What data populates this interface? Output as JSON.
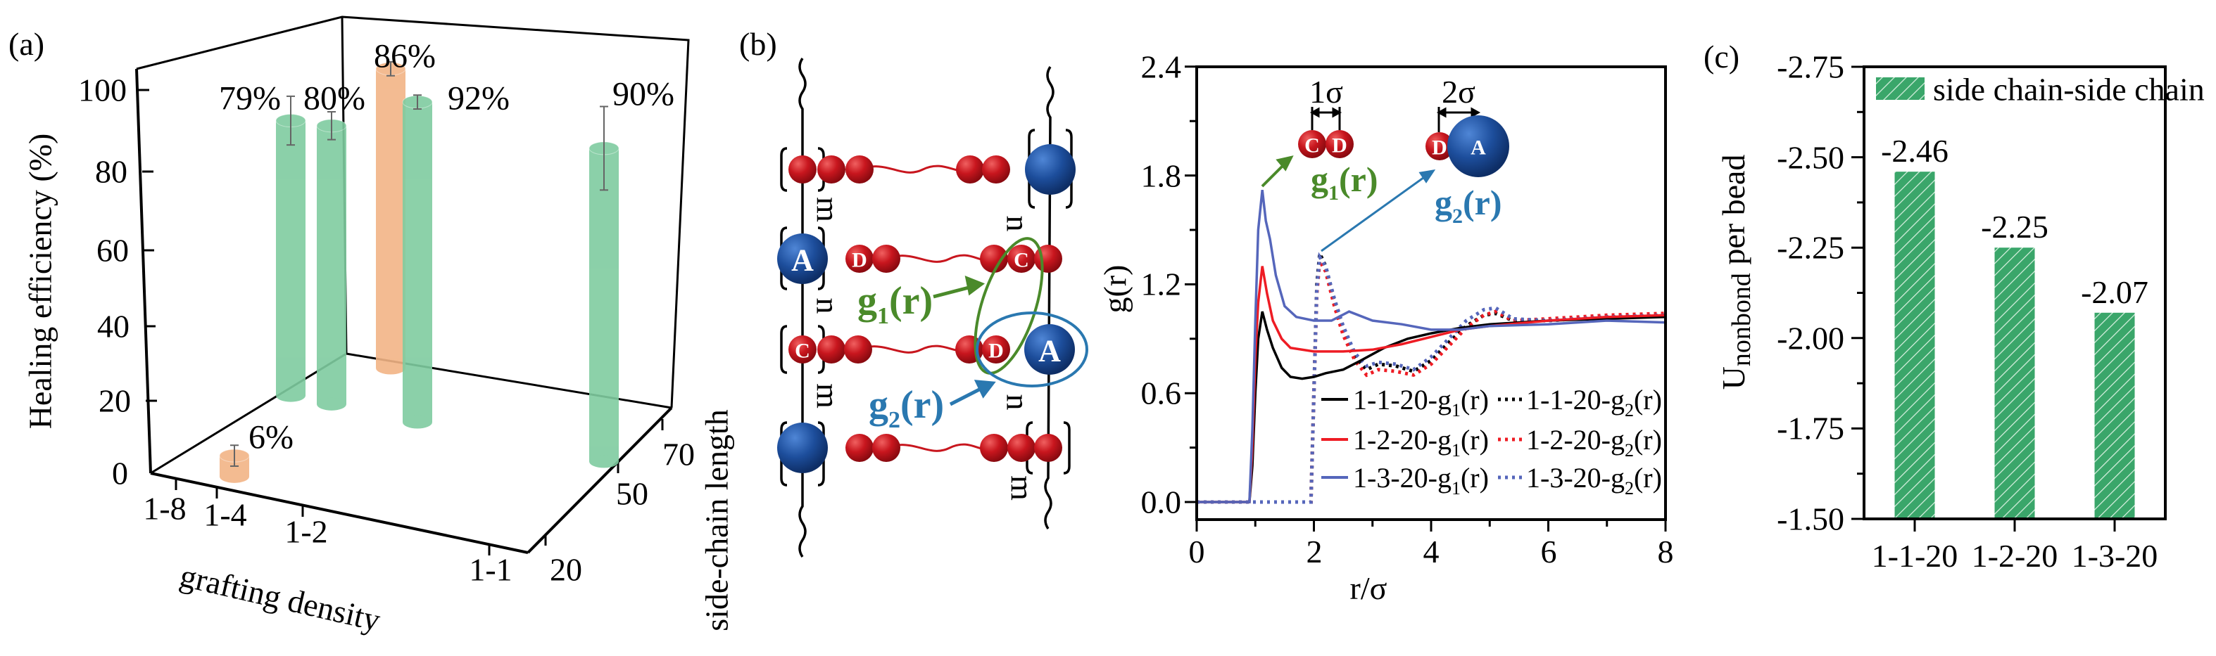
{
  "panel_labels": {
    "a": "(a)",
    "b": "(b)",
    "c": "(c)"
  },
  "colors": {
    "green_bar": "#7fcca0",
    "orange_bar": "#f2b486",
    "bead_red": "#c8161e",
    "bead_blue": "#1d4e9c",
    "g1_green": "#4a8a2a",
    "g2_blue": "#2a78b0",
    "hatch_green": "#3aa66a"
  },
  "chart_data": [
    {
      "type": "bar3d",
      "zlabel": "Healing efficiency (%)",
      "xlabel": "grafting density",
      "ylabel": "side-chain length",
      "z_ticks": [
        "0",
        "20",
        "40",
        "60",
        "80",
        "100"
      ],
      "x_ticks": [
        "1-8",
        "1-4",
        "1-2",
        "1-1"
      ],
      "y_ticks": [
        "20",
        "50",
        "70"
      ],
      "zlim": [
        0,
        100
      ],
      "bars": [
        {
          "grafting": "1-4",
          "side_chain": 20,
          "value": 6,
          "error": 3,
          "label": "6%",
          "color": "orange"
        },
        {
          "grafting": "1-8",
          "side_chain": 50,
          "value": 79,
          "error": 7,
          "label": "79%",
          "color": "green"
        },
        {
          "grafting": "1-4",
          "side_chain": 50,
          "value": 80,
          "error": 4,
          "label": "80%",
          "color": "green"
        },
        {
          "grafting": "1-2",
          "side_chain": 70,
          "value": 86,
          "error": 2,
          "label": "86%",
          "color": "orange"
        },
        {
          "grafting": "1-2",
          "side_chain": 50,
          "value": 92,
          "error": 2,
          "label": "92%",
          "color": "green"
        },
        {
          "grafting": "1-1",
          "side_chain": 50,
          "value": 90,
          "error": 12,
          "label": "90%",
          "color": "green"
        }
      ]
    },
    {
      "type": "line",
      "xlabel": "r/σ",
      "ylabel": "g(r)",
      "xlim": [
        0,
        8
      ],
      "ylim": [
        -0.1,
        2.4
      ],
      "x_ticks": [
        "0",
        "2",
        "4",
        "6",
        "8"
      ],
      "y_ticks": [
        "0.0",
        "0.6",
        "1.2",
        "1.8",
        "2.4"
      ],
      "legend_position": "bottom-right",
      "series": [
        {
          "name": "1-1-20-g1(r)",
          "name_main": "1-1-20-g",
          "name_sub": "1",
          "name_end": "(r)",
          "color": "#000000",
          "style": "solid",
          "points": [
            [
              0,
              0
            ],
            [
              0.9,
              0
            ],
            [
              0.95,
              0.2
            ],
            [
              1.0,
              0.6
            ],
            [
              1.05,
              0.9
            ],
            [
              1.12,
              1.05
            ],
            [
              1.2,
              0.95
            ],
            [
              1.3,
              0.85
            ],
            [
              1.45,
              0.74
            ],
            [
              1.6,
              0.69
            ],
            [
              1.8,
              0.68
            ],
            [
              2.0,
              0.69
            ],
            [
              2.2,
              0.71
            ],
            [
              2.5,
              0.73
            ],
            [
              2.8,
              0.78
            ],
            [
              3.2,
              0.85
            ],
            [
              3.6,
              0.9
            ],
            [
              4.0,
              0.93
            ],
            [
              4.5,
              0.96
            ],
            [
              5.0,
              0.98
            ],
            [
              6,
              1.0
            ],
            [
              7,
              1.01
            ],
            [
              8,
              1.02
            ]
          ]
        },
        {
          "name": "1-2-20-g1(r)",
          "name_main": "1-2-20-g",
          "name_sub": "1",
          "name_end": "(r)",
          "color": "#ee1c24",
          "style": "solid",
          "points": [
            [
              0,
              0
            ],
            [
              0.9,
              0
            ],
            [
              0.95,
              0.3
            ],
            [
              1.0,
              0.8
            ],
            [
              1.05,
              1.1
            ],
            [
              1.12,
              1.3
            ],
            [
              1.2,
              1.15
            ],
            [
              1.3,
              1.0
            ],
            [
              1.45,
              0.9
            ],
            [
              1.6,
              0.85
            ],
            [
              2.0,
              0.83
            ],
            [
              2.5,
              0.83
            ],
            [
              3.0,
              0.84
            ],
            [
              3.5,
              0.87
            ],
            [
              4.0,
              0.91
            ],
            [
              4.5,
              0.95
            ],
            [
              5,
              0.97
            ],
            [
              6,
              1.0
            ],
            [
              7,
              1.02
            ],
            [
              8,
              1.03
            ]
          ]
        },
        {
          "name": "1-3-20-g1(r)",
          "name_main": "1-3-20-g",
          "name_sub": "1",
          "name_end": "(r)",
          "color": "#5566bb",
          "style": "solid",
          "points": [
            [
              0,
              0
            ],
            [
              0.9,
              0
            ],
            [
              0.95,
              0.4
            ],
            [
              1.0,
              1.0
            ],
            [
              1.05,
              1.5
            ],
            [
              1.12,
              1.72
            ],
            [
              1.18,
              1.55
            ],
            [
              1.25,
              1.45
            ],
            [
              1.35,
              1.25
            ],
            [
              1.5,
              1.08
            ],
            [
              1.7,
              1.02
            ],
            [
              2.0,
              1.0
            ],
            [
              2.3,
              1.0
            ],
            [
              2.6,
              1.05
            ],
            [
              3.0,
              1.0
            ],
            [
              3.5,
              0.98
            ],
            [
              4.0,
              0.95
            ],
            [
              4.5,
              0.95
            ],
            [
              5,
              0.97
            ],
            [
              6,
              0.98
            ],
            [
              7,
              1.0
            ],
            [
              8,
              0.99
            ]
          ]
        },
        {
          "name": "1-1-20-g2(r)",
          "name_main": "1-1-20-g",
          "name_sub": "2",
          "name_end": "(r)",
          "color": "#000000",
          "style": "dotted",
          "points": [
            [
              0,
              0
            ],
            [
              1.95,
              0
            ],
            [
              2.0,
              0.6
            ],
            [
              2.05,
              1.2
            ],
            [
              2.1,
              1.37
            ],
            [
              2.2,
              1.3
            ],
            [
              2.35,
              1.1
            ],
            [
              2.5,
              0.95
            ],
            [
              2.7,
              0.8
            ],
            [
              2.9,
              0.73
            ],
            [
              3.1,
              0.76
            ],
            [
              3.4,
              0.75
            ],
            [
              3.7,
              0.72
            ],
            [
              4.0,
              0.78
            ],
            [
              4.3,
              0.88
            ],
            [
              4.6,
              0.97
            ],
            [
              4.9,
              1.03
            ],
            [
              5.1,
              1.04
            ],
            [
              5.4,
              1.0
            ],
            [
              6,
              1.0
            ],
            [
              7,
              1.02
            ],
            [
              8,
              1.03
            ]
          ]
        },
        {
          "name": "1-2-20-g2(r)",
          "name_main": "1-2-20-g",
          "name_sub": "2",
          "name_end": "(r)",
          "color": "#ee1c24",
          "style": "dotted",
          "points": [
            [
              0,
              0
            ],
            [
              1.95,
              0
            ],
            [
              2.0,
              0.6
            ],
            [
              2.05,
              1.15
            ],
            [
              2.1,
              1.33
            ],
            [
              2.2,
              1.27
            ],
            [
              2.35,
              1.08
            ],
            [
              2.5,
              0.92
            ],
            [
              2.7,
              0.78
            ],
            [
              2.9,
              0.7
            ],
            [
              3.1,
              0.73
            ],
            [
              3.4,
              0.72
            ],
            [
              3.7,
              0.7
            ],
            [
              4.0,
              0.76
            ],
            [
              4.3,
              0.86
            ],
            [
              4.6,
              0.96
            ],
            [
              4.9,
              1.03
            ],
            [
              5.1,
              1.05
            ],
            [
              5.4,
              1.0
            ],
            [
              6,
              1.01
            ],
            [
              7,
              1.03
            ],
            [
              8,
              1.04
            ]
          ]
        },
        {
          "name": "1-3-20-g2(r)",
          "name_main": "1-3-20-g",
          "name_sub": "2",
          "name_end": "(r)",
          "color": "#5566bb",
          "style": "dotted",
          "points": [
            [
              0,
              0
            ],
            [
              1.95,
              0
            ],
            [
              2.0,
              0.6
            ],
            [
              2.05,
              1.18
            ],
            [
              2.1,
              1.35
            ],
            [
              2.2,
              1.3
            ],
            [
              2.35,
              1.12
            ],
            [
              2.5,
              0.97
            ],
            [
              2.7,
              0.82
            ],
            [
              2.9,
              0.75
            ],
            [
              3.1,
              0.77
            ],
            [
              3.4,
              0.76
            ],
            [
              3.7,
              0.73
            ],
            [
              4.0,
              0.8
            ],
            [
              4.3,
              0.9
            ],
            [
              4.6,
              1.0
            ],
            [
              4.9,
              1.06
            ],
            [
              5.1,
              1.07
            ],
            [
              5.4,
              1.01
            ],
            [
              6,
              1.0
            ],
            [
              7,
              1.02
            ],
            [
              8,
              1.03
            ]
          ]
        }
      ],
      "annotations": {
        "one_sigma": "1σ",
        "two_sigma": "2σ",
        "g1_main": "g",
        "g1_sub": "1",
        "g1_end": "(r)",
        "g2_main": "g",
        "g2_sub": "2",
        "g2_end": "(r)"
      }
    },
    {
      "type": "bar",
      "ylabel_main": "U",
      "ylabel_sub": "nonbond",
      "ylabel_end": " per bead",
      "categories": [
        "1-1-20",
        "1-2-20",
        "1-3-20"
      ],
      "values": [
        -2.46,
        -2.25,
        -2.07
      ],
      "value_labels": [
        "-2.46",
        "-2.25",
        "-2.07"
      ],
      "ylim": [
        -1.5,
        -2.75
      ],
      "y_inverted": true,
      "y_ticks": [
        "-2.75",
        "-2.50",
        "-2.25",
        "-2.00",
        "-1.75",
        "-1.50"
      ],
      "legend": "side chain-side chain",
      "legend_position": "top-left",
      "pattern": "diagonal-hatch"
    }
  ],
  "schematic": {
    "bead_A": "A",
    "bead_C": "C",
    "bead_D": "D",
    "repeat_m": "m",
    "repeat_n": "n",
    "g1_main": "g",
    "g1_sub": "1",
    "g1_end": "(r)",
    "g2_main": "g",
    "g2_sub": "2",
    "g2_end": "(r)"
  }
}
